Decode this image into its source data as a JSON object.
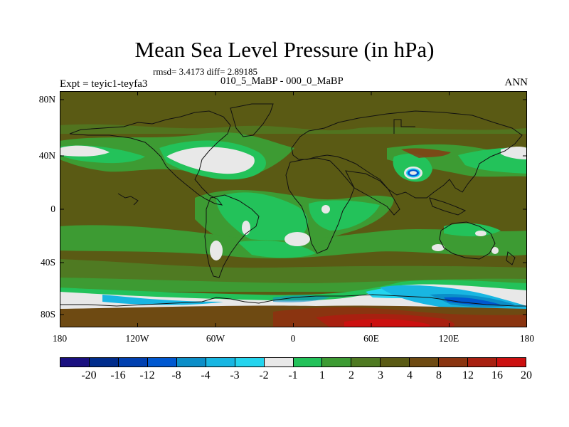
{
  "title": "Mean Sea Level Pressure (in hPa)",
  "stats": "rmsd= 3.4173 diff= 2.89185",
  "experiment_label": "Expt = teyic1-teyfa3",
  "period_label": "010_5_MaBP - 000_0_MaBP",
  "season_label": "ANN",
  "colors": {
    "bins": [
      "#1a1080",
      "#002c8c",
      "#0040b0",
      "#0058d0",
      "#0b8ec8",
      "#18b6e2",
      "#24d4ee",
      "#e8e8e8",
      "#23c25a",
      "#3d9b33",
      "#4f7a22",
      "#5a5a14",
      "#6e4a12",
      "#8a3410",
      "#a82010",
      "#cc1010"
    ]
  },
  "chart_data": {
    "type": "heatmap",
    "title": "Mean Sea Level Pressure (in hPa)",
    "x_range": [
      -180,
      180
    ],
    "y_range": [
      -90,
      90
    ],
    "x_ticks": [
      "180",
      "120W",
      "60W",
      "0",
      "60E",
      "120E",
      "180"
    ],
    "y_ticks": [
      "80N",
      "40N",
      "0",
      "40S",
      "80S"
    ],
    "colorbar_labels": [
      "-20",
      "-16",
      "-12",
      "-8",
      "-4",
      "-3",
      "-2",
      "-1",
      "1",
      "2",
      "3",
      "4",
      "8",
      "12",
      "16",
      "20"
    ]
  }
}
